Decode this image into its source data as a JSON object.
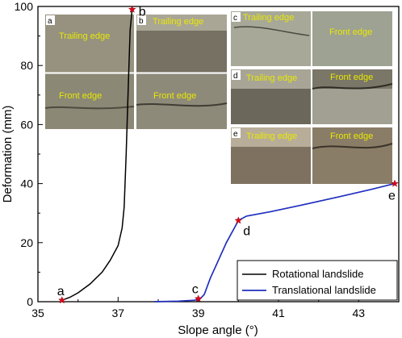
{
  "chart_data": {
    "type": "line",
    "xlabel": "Slope angle (°)",
    "ylabel": "Deformation (mm)",
    "xlim": [
      35,
      44
    ],
    "ylim": [
      0,
      100
    ],
    "xticks": [
      "35",
      "37",
      "39",
      "41",
      "43"
    ],
    "yticks": [
      "0",
      "20",
      "40",
      "60",
      "80",
      "100"
    ],
    "legend_position": "bottom-right",
    "series": [
      {
        "name": "Rotational landslide",
        "color": "#000000",
        "x": [
          35.6,
          35.8,
          36.0,
          36.3,
          36.6,
          36.8,
          37.0,
          37.1,
          37.15,
          37.2,
          37.25,
          37.3,
          37.35
        ],
        "y": [
          0.5,
          1.5,
          3,
          6,
          10,
          14,
          19,
          25,
          32,
          50,
          72,
          92,
          99
        ]
      },
      {
        "name": "Translational landslide",
        "color": "#1f2fbf",
        "x": [
          37.9,
          38.5,
          38.9,
          39.05,
          39.15,
          39.3,
          39.5,
          39.7,
          39.9,
          40.0,
          40.2,
          40.8,
          41.5,
          42.5,
          43.3,
          43.9
        ],
        "y": [
          0,
          0.2,
          0.5,
          1.0,
          2.5,
          8,
          14,
          20,
          25,
          27.5,
          29,
          30.5,
          32.5,
          35.5,
          38,
          40
        ]
      }
    ],
    "markers": [
      {
        "label": "a",
        "x": 35.6,
        "y": 0.5
      },
      {
        "label": "b",
        "x": 37.35,
        "y": 99
      },
      {
        "label": "c",
        "x": 39.0,
        "y": 1.0
      },
      {
        "label": "d",
        "x": 40.0,
        "y": 27.5
      },
      {
        "label": "e",
        "x": 43.9,
        "y": 40
      }
    ]
  },
  "photos": [
    {
      "id": "a",
      "letter": "a",
      "captions": [
        "Trailing edge",
        "Front edge"
      ],
      "fill": "#8f8c7c"
    },
    {
      "id": "b",
      "letter": "b",
      "captions": [
        "Trailing edge",
        "Front edge"
      ],
      "fill": "#7c7768"
    },
    {
      "id": "c",
      "letter": "c",
      "captions": [
        "Trailing edge",
        "Front edge"
      ],
      "fill": "#a3a494"
    },
    {
      "id": "d",
      "letter": "d",
      "captions": [
        "Trailing edge",
        "Front edge"
      ],
      "fill": "#6e6a5e"
    },
    {
      "id": "e",
      "letter": "e",
      "captions": [
        "Trailing edge",
        "Front edge"
      ],
      "fill": "#8a7a66"
    }
  ],
  "colors": {
    "marker": "#e0001a",
    "translational": "#1f2fbf",
    "rotational": "#000000",
    "caption": "#e8e800"
  }
}
